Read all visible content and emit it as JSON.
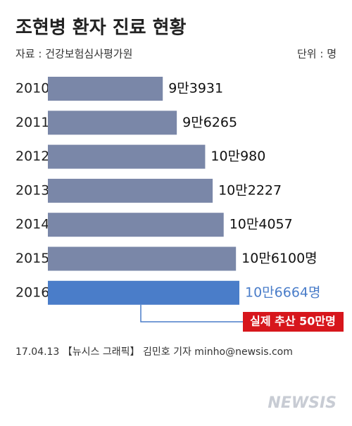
{
  "chart_data": {
    "type": "bar",
    "orientation": "horizontal",
    "title": "조현병 환자 진료 현황",
    "source": "자료 : 건강보험심사평가원",
    "unit": "단위 : 명",
    "categories": [
      "2010",
      "2011",
      "2012",
      "2013",
      "2014",
      "2015",
      "2016"
    ],
    "values": [
      93931,
      96265,
      100980,
      102227,
      104057,
      106100,
      106664
    ],
    "value_labels": [
      "9만3931",
      "9만6265",
      "10만980",
      "10만2227",
      "10만4057",
      "10만6100명",
      "10만6664명"
    ],
    "color": "#7a87a8",
    "highlight_color": "#4a7dc9",
    "highlight_index": 6,
    "annotation": "실제 추산 50만명",
    "annotation_color": "#d7161c",
    "footer": "17.04.13 【뉴시스 그래픽】 김민호 기자 minho@newsis.com",
    "logo": "NEWSIS"
  }
}
